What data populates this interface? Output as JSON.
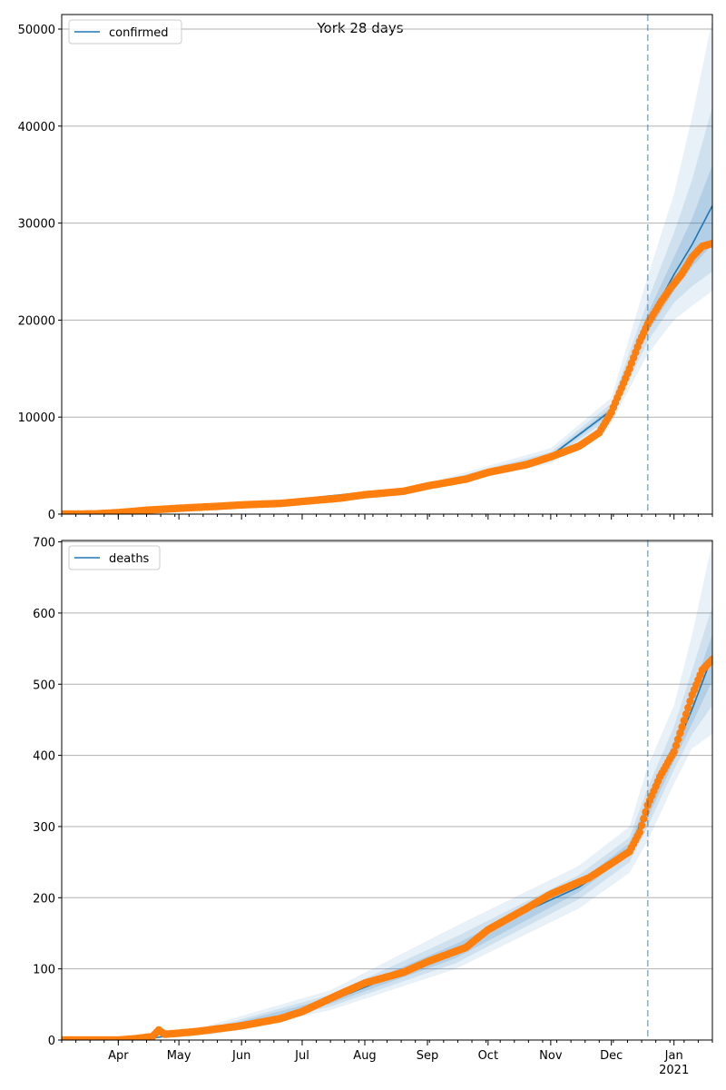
{
  "figure": {
    "title": "York 28 days"
  },
  "chart_data": [
    {
      "type": "line",
      "title": "",
      "series": [
        {
          "name": "confirmed",
          "kind": "fit-line-with-bands",
          "color": "#1f77b4"
        },
        {
          "name": "",
          "kind": "observed-points",
          "color": "#ff7f0e"
        }
      ],
      "legend": {
        "position": "top-left",
        "label": "confirmed"
      },
      "forecast_marker_date": "2020-12-19",
      "xlim": [
        "2020-03-04",
        "2021-01-20"
      ],
      "ylim": [
        0,
        51500
      ],
      "yticks": [
        0,
        10000,
        20000,
        30000,
        40000,
        50000
      ],
      "grid": "horizontal",
      "observed": [
        [
          "2020-03-04",
          0
        ],
        [
          "2020-03-20",
          20
        ],
        [
          "2020-04-01",
          150
        ],
        [
          "2020-04-15",
          400
        ],
        [
          "2020-05-01",
          600
        ],
        [
          "2020-05-20",
          800
        ],
        [
          "2020-06-01",
          950
        ],
        [
          "2020-06-20",
          1100
        ],
        [
          "2020-07-01",
          1300
        ],
        [
          "2020-07-20",
          1650
        ],
        [
          "2020-08-01",
          2000
        ],
        [
          "2020-08-20",
          2350
        ],
        [
          "2020-09-01",
          2900
        ],
        [
          "2020-09-20",
          3600
        ],
        [
          "2020-10-01",
          4300
        ],
        [
          "2020-10-20",
          5100
        ],
        [
          "2020-11-01",
          5900
        ],
        [
          "2020-11-15",
          7000
        ],
        [
          "2020-11-25",
          8400
        ],
        [
          "2020-12-01",
          10500
        ],
        [
          "2020-12-05",
          12500
        ],
        [
          "2020-12-10",
          15000
        ],
        [
          "2020-12-15",
          17800
        ],
        [
          "2020-12-19",
          19600
        ],
        [
          "2020-12-25",
          21700
        ],
        [
          "2020-12-31",
          23500
        ],
        [
          "2021-01-05",
          24800
        ],
        [
          "2021-01-10",
          26500
        ],
        [
          "2021-01-15",
          27600
        ],
        [
          "2021-01-20",
          27900
        ]
      ],
      "fit": [
        [
          "2020-03-04",
          0
        ],
        [
          "2020-06-01",
          950
        ],
        [
          "2020-09-01",
          2900
        ],
        [
          "2020-11-01",
          6000
        ],
        [
          "2020-12-01",
          10700
        ],
        [
          "2020-12-19",
          19700
        ],
        [
          "2021-01-01",
          24700
        ],
        [
          "2021-01-10",
          27800
        ],
        [
          "2021-01-20",
          31800
        ]
      ],
      "bands": [
        {
          "opacity": 0.1,
          "upper": [
            [
              "2020-09-01",
              3200
            ],
            [
              "2020-11-01",
              6800
            ],
            [
              "2020-12-01",
              12000
            ],
            [
              "2020-12-19",
              24500
            ],
            [
              "2021-01-01",
              33000
            ],
            [
              "2021-01-10",
              41000
            ],
            [
              "2021-01-20",
              51000
            ]
          ],
          "lower": [
            [
              "2020-09-01",
              2600
            ],
            [
              "2020-11-01",
              5200
            ],
            [
              "2020-12-01",
              9400
            ],
            [
              "2020-12-19",
              16500
            ],
            [
              "2021-01-01",
              20000
            ],
            [
              "2021-01-10",
              21500
            ],
            [
              "2021-01-20",
              23000
            ]
          ]
        },
        {
          "opacity": 0.12,
          "upper": [
            [
              "2020-09-01",
              3050
            ],
            [
              "2020-11-01",
              6400
            ],
            [
              "2020-12-01",
              11400
            ],
            [
              "2020-12-19",
              22000
            ],
            [
              "2021-01-01",
              29000
            ],
            [
              "2021-01-10",
              34500
            ],
            [
              "2021-01-20",
              42000
            ]
          ],
          "lower": [
            [
              "2020-09-01",
              2750
            ],
            [
              "2020-11-01",
              5600
            ],
            [
              "2020-12-01",
              10000
            ],
            [
              "2020-12-19",
              17800
            ],
            [
              "2021-01-01",
              21800
            ],
            [
              "2021-01-10",
              23500
            ],
            [
              "2021-01-20",
              25000
            ]
          ]
        },
        {
          "opacity": 0.16,
          "upper": [
            [
              "2020-09-01",
              2980
            ],
            [
              "2020-11-01",
              6150
            ],
            [
              "2020-12-01",
              11000
            ],
            [
              "2020-12-19",
              20700
            ],
            [
              "2021-01-01",
              26500
            ],
            [
              "2021-01-10",
              30500
            ],
            [
              "2021-01-20",
              36000
            ]
          ],
          "lower": [
            [
              "2020-09-01",
              2820
            ],
            [
              "2020-11-01",
              5850
            ],
            [
              "2020-12-01",
              10400
            ],
            [
              "2020-12-19",
              18700
            ],
            [
              "2021-01-01",
              23000
            ],
            [
              "2021-01-10",
              25500
            ],
            [
              "2021-01-20",
              27800
            ]
          ]
        }
      ]
    },
    {
      "type": "line",
      "title": "",
      "series": [
        {
          "name": "deaths",
          "kind": "fit-line-with-bands",
          "color": "#1f77b4"
        },
        {
          "name": "",
          "kind": "observed-points",
          "color": "#ff7f0e"
        }
      ],
      "legend": {
        "position": "top-left",
        "label": "deaths"
      },
      "forecast_marker_date": "2020-12-19",
      "xlim": [
        "2020-03-04",
        "2021-01-20"
      ],
      "ylim": [
        0,
        702
      ],
      "yticks": [
        0,
        100,
        200,
        300,
        400,
        500,
        600,
        700
      ],
      "grid": "horizontal",
      "observed": [
        [
          "2020-03-04",
          0
        ],
        [
          "2020-04-01",
          0
        ],
        [
          "2020-04-10",
          2
        ],
        [
          "2020-04-18",
          5
        ],
        [
          "2020-04-21",
          14
        ],
        [
          "2020-04-24",
          8
        ],
        [
          "2020-05-10",
          12
        ],
        [
          "2020-06-01",
          20
        ],
        [
          "2020-06-20",
          30
        ],
        [
          "2020-07-01",
          40
        ],
        [
          "2020-07-20",
          65
        ],
        [
          "2020-08-01",
          80
        ],
        [
          "2020-08-20",
          95
        ],
        [
          "2020-09-01",
          110
        ],
        [
          "2020-09-20",
          130
        ],
        [
          "2020-10-01",
          155
        ],
        [
          "2020-10-20",
          185
        ],
        [
          "2020-11-01",
          205
        ],
        [
          "2020-11-20",
          228
        ],
        [
          "2020-12-01",
          248
        ],
        [
          "2020-12-10",
          265
        ],
        [
          "2020-12-15",
          292
        ],
        [
          "2020-12-19",
          330
        ],
        [
          "2020-12-25",
          370
        ],
        [
          "2021-01-01",
          405
        ],
        [
          "2021-01-05",
          440
        ],
        [
          "2021-01-10",
          485
        ],
        [
          "2021-01-15",
          520
        ],
        [
          "2021-01-20",
          535
        ]
      ],
      "fit": [
        [
          "2020-03-04",
          0
        ],
        [
          "2020-04-15",
          2
        ],
        [
          "2020-05-15",
          12
        ],
        [
          "2020-06-15",
          25
        ],
        [
          "2020-07-15",
          55
        ],
        [
          "2020-08-15",
          90
        ],
        [
          "2020-09-15",
          125
        ],
        [
          "2020-10-15",
          175
        ],
        [
          "2020-11-15",
          215
        ],
        [
          "2020-12-01",
          245
        ],
        [
          "2020-12-10",
          270
        ],
        [
          "2020-12-19",
          325
        ],
        [
          "2021-01-01",
          405
        ],
        [
          "2021-01-10",
          465
        ],
        [
          "2021-01-20",
          540
        ]
      ],
      "bands": [
        {
          "opacity": 0.1,
          "upper": [
            [
              "2020-05-15",
              20
            ],
            [
              "2020-07-15",
              70
            ],
            [
              "2020-09-15",
              160
            ],
            [
              "2020-11-15",
              245
            ],
            [
              "2020-12-10",
              300
            ],
            [
              "2020-12-19",
              385
            ],
            [
              "2021-01-01",
              470
            ],
            [
              "2021-01-10",
              570
            ],
            [
              "2021-01-20",
              700
            ]
          ],
          "lower": [
            [
              "2020-05-15",
              6
            ],
            [
              "2020-07-15",
              42
            ],
            [
              "2020-09-15",
              100
            ],
            [
              "2020-11-15",
              185
            ],
            [
              "2020-12-10",
              235
            ],
            [
              "2020-12-19",
              280
            ],
            [
              "2021-01-01",
              360
            ],
            [
              "2021-01-10",
              410
            ],
            [
              "2021-01-20",
              430
            ]
          ]
        },
        {
          "opacity": 0.12,
          "upper": [
            [
              "2020-05-15",
              16
            ],
            [
              "2020-07-15",
              64
            ],
            [
              "2020-09-15",
              145
            ],
            [
              "2020-11-15",
              232
            ],
            [
              "2020-12-10",
              285
            ],
            [
              "2020-12-19",
              355
            ],
            [
              "2021-01-01",
              440
            ],
            [
              "2021-01-10",
              520
            ],
            [
              "2021-01-20",
              610
            ]
          ],
          "lower": [
            [
              "2020-05-15",
              8
            ],
            [
              "2020-07-15",
              47
            ],
            [
              "2020-09-15",
              108
            ],
            [
              "2020-11-15",
              198
            ],
            [
              "2020-12-10",
              250
            ],
            [
              "2020-12-19",
              300
            ],
            [
              "2021-01-01",
              380
            ],
            [
              "2021-01-10",
              430
            ],
            [
              "2021-01-20",
              470
            ]
          ]
        },
        {
          "opacity": 0.16,
          "upper": [
            [
              "2020-05-15",
              14
            ],
            [
              "2020-07-15",
              59
            ],
            [
              "2020-09-15",
              135
            ],
            [
              "2020-11-15",
              222
            ],
            [
              "2020-12-10",
              277
            ],
            [
              "2020-12-19",
              338
            ],
            [
              "2021-01-01",
              420
            ],
            [
              "2021-01-10",
              490
            ],
            [
              "2021-01-20",
              570
            ]
          ],
          "lower": [
            [
              "2020-05-15",
              10
            ],
            [
              "2020-07-15",
              51
            ],
            [
              "2020-09-15",
              115
            ],
            [
              "2020-11-15",
              208
            ],
            [
              "2020-12-10",
              262
            ],
            [
              "2020-12-19",
              312
            ],
            [
              "2021-01-01",
              392
            ],
            [
              "2021-01-10",
              445
            ],
            [
              "2021-01-20",
              505
            ]
          ]
        }
      ]
    }
  ],
  "x_axis": {
    "month_ticks": [
      {
        "label": "Apr",
        "date": "2020-04-01"
      },
      {
        "label": "May",
        "date": "2020-05-01"
      },
      {
        "label": "Jun",
        "date": "2020-06-01"
      },
      {
        "label": "Jul",
        "date": "2020-07-01"
      },
      {
        "label": "Aug",
        "date": "2020-08-01"
      },
      {
        "label": "Sep",
        "date": "2020-09-01"
      },
      {
        "label": "Oct",
        "date": "2020-10-01"
      },
      {
        "label": "Nov",
        "date": "2020-11-01"
      },
      {
        "label": "Dec",
        "date": "2020-12-01"
      },
      {
        "label": "Jan",
        "date": "2021-01-01"
      }
    ],
    "year_label": "2021"
  },
  "colors": {
    "fit": "#1f77b4",
    "observed": "#ff7f0e",
    "marker": "#1f77b4",
    "grid": "#b0b0b0"
  }
}
